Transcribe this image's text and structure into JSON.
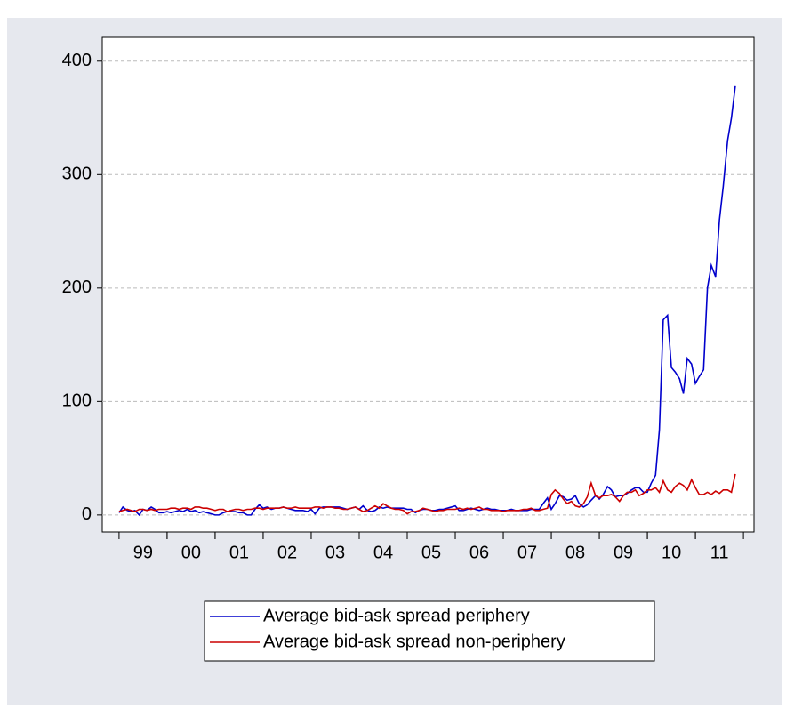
{
  "chart_data": {
    "type": "line",
    "x": [
      1999,
      1999.08,
      1999.17,
      1999.25,
      1999.33,
      1999.42,
      1999.5,
      1999.58,
      1999.67,
      1999.75,
      1999.83,
      1999.92,
      2000,
      2000.08,
      2000.17,
      2000.25,
      2000.33,
      2000.42,
      2000.5,
      2000.58,
      2000.67,
      2000.75,
      2000.83,
      2000.92,
      2001,
      2001.08,
      2001.17,
      2001.25,
      2001.33,
      2001.42,
      2001.5,
      2001.58,
      2001.67,
      2001.75,
      2001.83,
      2001.92,
      2002,
      2002.08,
      2002.17,
      2002.25,
      2002.33,
      2002.42,
      2002.5,
      2002.58,
      2002.67,
      2002.75,
      2002.83,
      2002.92,
      2003,
      2003.08,
      2003.17,
      2003.25,
      2003.33,
      2003.42,
      2003.5,
      2003.58,
      2003.67,
      2003.75,
      2003.83,
      2003.92,
      2004,
      2004.08,
      2004.17,
      2004.25,
      2004.33,
      2004.42,
      2004.5,
      2004.58,
      2004.67,
      2004.75,
      2004.83,
      2004.92,
      2005,
      2005.08,
      2005.17,
      2005.25,
      2005.33,
      2005.42,
      2005.5,
      2005.58,
      2005.67,
      2005.75,
      2005.83,
      2005.92,
      2006,
      2006.08,
      2006.17,
      2006.25,
      2006.33,
      2006.42,
      2006.5,
      2006.58,
      2006.67,
      2006.75,
      2006.83,
      2006.92,
      2007,
      2007.08,
      2007.17,
      2007.25,
      2007.33,
      2007.42,
      2007.5,
      2007.58,
      2007.67,
      2007.75,
      2007.83,
      2007.92,
      2008,
      2008.08,
      2008.17,
      2008.25,
      2008.33,
      2008.42,
      2008.5,
      2008.58,
      2008.67,
      2008.75,
      2008.83,
      2008.92,
      2009,
      2009.08,
      2009.17,
      2009.25,
      2009.33,
      2009.42,
      2009.5,
      2009.58,
      2009.67,
      2009.75,
      2009.83,
      2009.92,
      2010,
      2010.08,
      2010.17,
      2010.25,
      2010.33,
      2010.42,
      2010.5,
      2010.58,
      2010.67,
      2010.75,
      2010.83,
      2010.92,
      2011,
      2011.08,
      2011.17,
      2011.25,
      2011.33,
      2011.42,
      2011.5,
      2011.58,
      2011.67,
      2011.75,
      2011.83
    ],
    "series": [
      {
        "name": "Average bid-ask spread periphery",
        "color": "#0000cc",
        "values": [
          2,
          7,
          4,
          3,
          4,
          0,
          5,
          4,
          7,
          5,
          2,
          2,
          3,
          2,
          3,
          4,
          3,
          5,
          3,
          4,
          2,
          3,
          2,
          1,
          0,
          0,
          2,
          3,
          3,
          3,
          2,
          2,
          0,
          0,
          5,
          9,
          6,
          7,
          5,
          6,
          6,
          7,
          6,
          5,
          4,
          4,
          4,
          3,
          5,
          1,
          6,
          7,
          7,
          7,
          7,
          7,
          6,
          5,
          6,
          7,
          5,
          8,
          4,
          3,
          4,
          7,
          6,
          7,
          6,
          6,
          6,
          6,
          5,
          5,
          2,
          4,
          5,
          5,
          4,
          4,
          5,
          5,
          6,
          7,
          8,
          4,
          4,
          5,
          6,
          5,
          4,
          5,
          6,
          5,
          5,
          4,
          4,
          4,
          5,
          4,
          4,
          4,
          4,
          5,
          5,
          5,
          10,
          15,
          5,
          10,
          17,
          16,
          13,
          14,
          17,
          10,
          7,
          9,
          13,
          17,
          14,
          18,
          25,
          22,
          16,
          17,
          17,
          19,
          22,
          24,
          24,
          20,
          20,
          28,
          35,
          75,
          172,
          176,
          130,
          126,
          120,
          107,
          138,
          133,
          116,
          122,
          128,
          200,
          220,
          210,
          260,
          290,
          330,
          350,
          378
        ]
      },
      {
        "name": "Average bid-ask spread non-periphery",
        "color": "#cc0000",
        "values": [
          3,
          4,
          5,
          4,
          3,
          5,
          5,
          4,
          5,
          4,
          5,
          5,
          5,
          6,
          6,
          5,
          6,
          6,
          5,
          7,
          7,
          6,
          6,
          5,
          4,
          5,
          5,
          3,
          4,
          5,
          5,
          4,
          5,
          5,
          6,
          6,
          5,
          6,
          6,
          6,
          6,
          7,
          6,
          6,
          7,
          6,
          6,
          6,
          6,
          7,
          7,
          6,
          7,
          7,
          6,
          6,
          5,
          5,
          6,
          7,
          5,
          3,
          4,
          6,
          8,
          6,
          10,
          8,
          6,
          5,
          5,
          4,
          1,
          3,
          3,
          4,
          6,
          5,
          4,
          3,
          4,
          4,
          5,
          5,
          5,
          6,
          5,
          6,
          5,
          6,
          7,
          5,
          5,
          4,
          4,
          4,
          3,
          4,
          4,
          4,
          4,
          5,
          5,
          6,
          4,
          4,
          5,
          6,
          18,
          22,
          19,
          14,
          10,
          12,
          8,
          7,
          10,
          16,
          28,
          17,
          15,
          17,
          17,
          18,
          16,
          12,
          17,
          20,
          20,
          22,
          17,
          19,
          22,
          22,
          24,
          20,
          30,
          22,
          20,
          25,
          28,
          26,
          22,
          31,
          24,
          18,
          18,
          20,
          18,
          21,
          19,
          22,
          22,
          20,
          36
        ]
      }
    ],
    "xlim": [
      1998.65,
      2012.22
    ],
    "xticks": [
      {
        "value": 1999.5,
        "label": "99"
      },
      {
        "value": 2000.5,
        "label": "00"
      },
      {
        "value": 2001.5,
        "label": "01"
      },
      {
        "value": 2002.5,
        "label": "02"
      },
      {
        "value": 2003.5,
        "label": "03"
      },
      {
        "value": 2004.5,
        "label": "04"
      },
      {
        "value": 2005.5,
        "label": "05"
      },
      {
        "value": 2006.5,
        "label": "06"
      },
      {
        "value": 2007.5,
        "label": "07"
      },
      {
        "value": 2008.5,
        "label": "08"
      },
      {
        "value": 2009.5,
        "label": "09"
      },
      {
        "value": 2010.5,
        "label": "10"
      },
      {
        "value": 2011.5,
        "label": "11"
      }
    ],
    "ylim": [
      -15,
      421
    ],
    "yticks": [
      0,
      100,
      200,
      300,
      400
    ],
    "grid": true
  }
}
